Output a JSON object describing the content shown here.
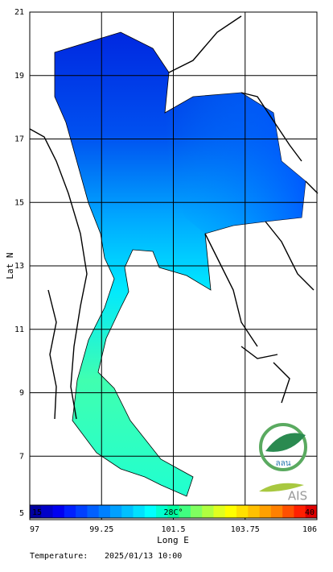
{
  "map": {
    "y_axis_label": "Lat N",
    "x_axis_label": "Long E",
    "xlim": [
      97,
      106
    ],
    "ylim": [
      5,
      21
    ],
    "xticks": [
      97,
      99.25,
      101.5,
      103.75,
      106
    ],
    "yticks": [
      5,
      7,
      9,
      11,
      13,
      15,
      17,
      19,
      21
    ]
  },
  "colorbar": {
    "min_label": "15",
    "mid_label": "28C°",
    "max_label": "40",
    "colors": [
      "#0000a0",
      "#0000c8",
      "#0000f0",
      "#0020ff",
      "#0040ff",
      "#0060ff",
      "#0080ff",
      "#00a0ff",
      "#00c0ff",
      "#00e0ff",
      "#00ffff",
      "#00ffd0",
      "#00ffa0",
      "#40ff80",
      "#80ff60",
      "#b0ff40",
      "#e0ff20",
      "#ffff00",
      "#ffe000",
      "#ffc000",
      "#ffa000",
      "#ff8000",
      "#ff5000",
      "#ff2000",
      "#e00000"
    ]
  },
  "footer": {
    "label": "Temperature:",
    "timestamp": "2025/01/13 10:00"
  },
  "logos": {
    "thai": "ลลน",
    "ais": "AIS"
  }
}
